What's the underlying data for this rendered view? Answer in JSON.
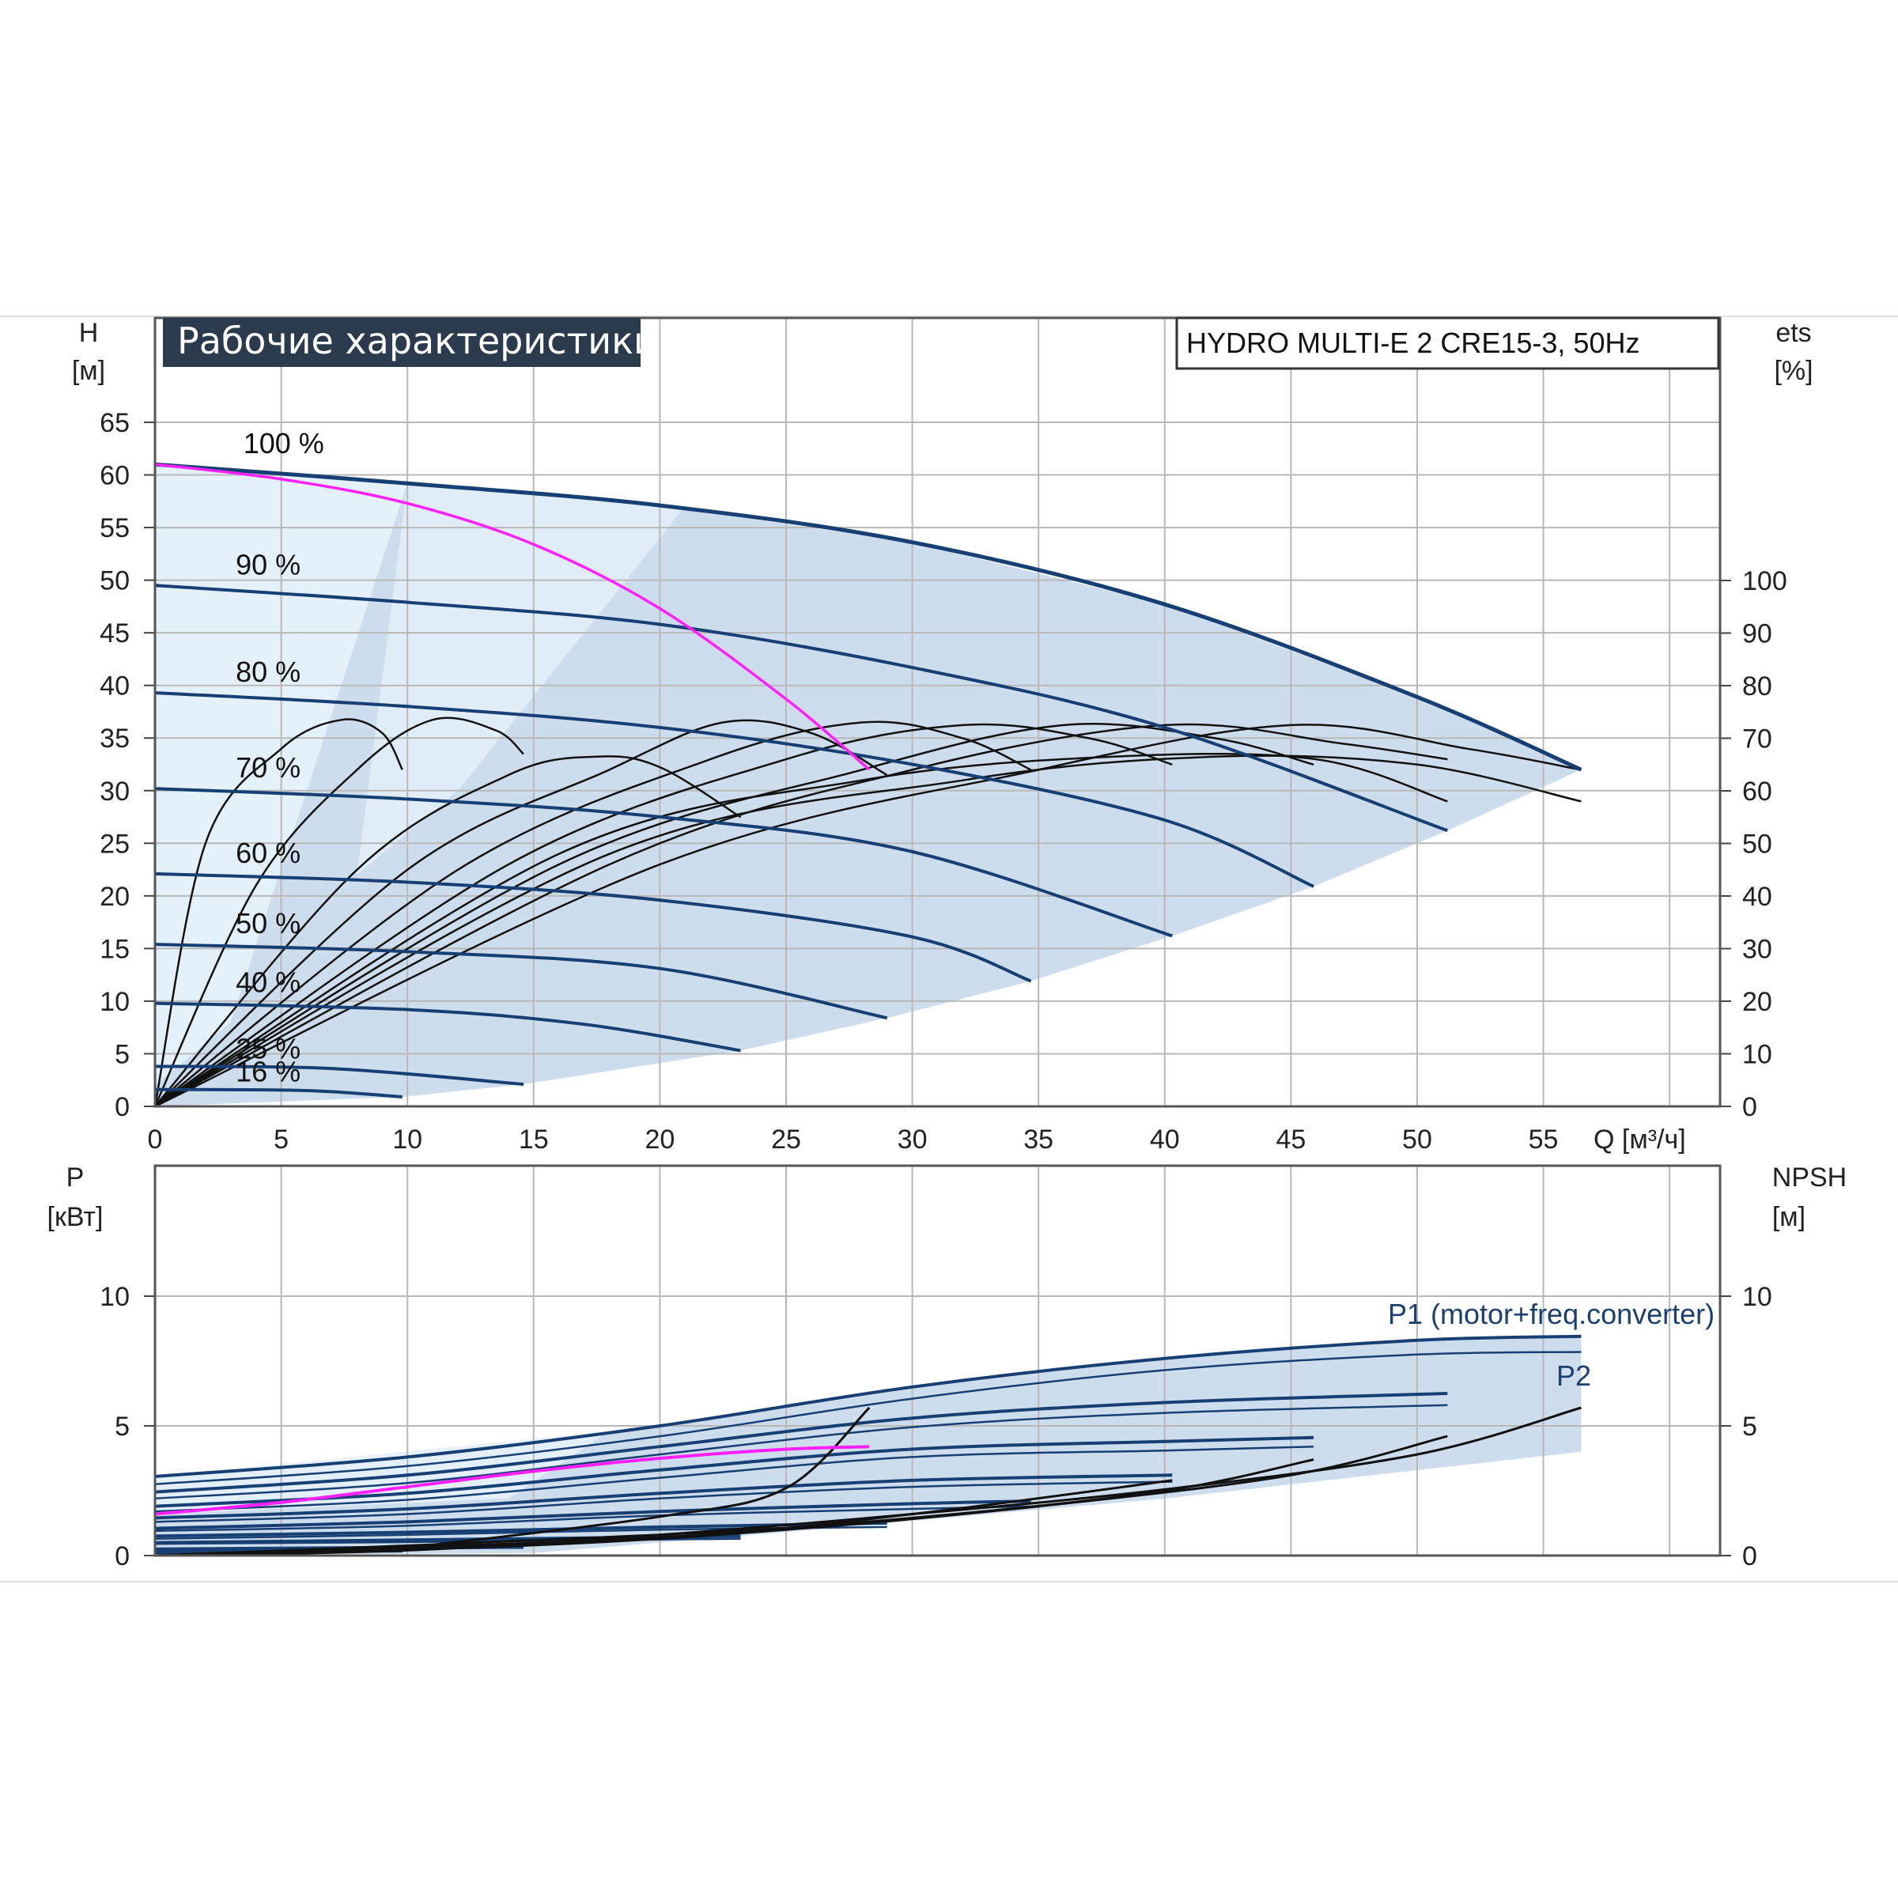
{
  "title": "Рабочие характеристики",
  "model": "HYDRO MULTI-E 2 CRE15-3, 50Hz",
  "colors": {
    "pump_curve": "#173f73",
    "efficiency": "#111111",
    "system_curve": "#ff1fff",
    "area_fill": "#c6d7ea",
    "area_light": "#e6f1fb",
    "title_bg": "#2b3b4d",
    "grid": "#b8b8b8"
  },
  "chart_data": [
    {
      "type": "line",
      "name": "head",
      "y_left_label": "H",
      "y_left_unit": "[м]",
      "y_right_label": "ets",
      "y_right_unit": "[%]",
      "x_label": "Q [м³/ч]",
      "xlim": [
        0,
        62
      ],
      "ylim": [
        0,
        65
      ],
      "x_ticks": [
        "0",
        "5",
        "10",
        "15",
        "20",
        "25",
        "30",
        "35",
        "40",
        "45",
        "50",
        "55"
      ],
      "y_left_ticks": [
        "0",
        "5",
        "10",
        "15",
        "20",
        "25",
        "30",
        "35",
        "40",
        "45",
        "50",
        "55",
        "60",
        "65"
      ],
      "y_right_ticks": [
        "0",
        "10",
        "20",
        "30",
        "40",
        "50",
        "60",
        "70",
        "80",
        "90",
        "100"
      ],
      "speed_labels": [
        "100 %",
        "90 %",
        "80 %",
        "70 %",
        "60 %",
        "50 %",
        "40 %",
        "25 %",
        "16 %"
      ],
      "speed_curves": [
        {
          "speed": "100 %",
          "points": [
            [
              0,
              61
            ],
            [
              10,
              59.2
            ],
            [
              20,
              57.1
            ],
            [
              30,
              53.6
            ],
            [
              40,
              47.7
            ],
            [
              50,
              38.9
            ],
            [
              56.5,
              32
            ]
          ]
        },
        {
          "speed": "90 %",
          "points": [
            [
              0,
              49.5
            ],
            [
              10,
              47.9
            ],
            [
              20,
              45.8
            ],
            [
              30,
              41.7
            ],
            [
              40,
              36.0
            ],
            [
              51.2,
              26.2
            ]
          ]
        },
        {
          "speed": "80 %",
          "points": [
            [
              0,
              39.3
            ],
            [
              10,
              38.0
            ],
            [
              20,
              36.0
            ],
            [
              30,
              32.5
            ],
            [
              40,
              27.2
            ],
            [
              45.9,
              20.9
            ]
          ]
        },
        {
          "speed": "70 %",
          "points": [
            [
              0,
              30.2
            ],
            [
              10,
              29.2
            ],
            [
              20,
              27.5
            ],
            [
              30,
              24.2
            ],
            [
              40.3,
              16.2
            ]
          ]
        },
        {
          "speed": "60 %",
          "points": [
            [
              0,
              22.1
            ],
            [
              10,
              21.3
            ],
            [
              20,
              19.6
            ],
            [
              30,
              16.1
            ],
            [
              34.7,
              11.9
            ]
          ]
        },
        {
          "speed": "50 %",
          "points": [
            [
              0,
              15.4
            ],
            [
              10,
              14.7
            ],
            [
              20,
              13.1
            ],
            [
              29.0,
              8.4
            ]
          ]
        },
        {
          "speed": "40 %",
          "points": [
            [
              0,
              9.8
            ],
            [
              10,
              9.2
            ],
            [
              17,
              7.8
            ],
            [
              23.2,
              5.3
            ]
          ]
        },
        {
          "speed": "25 %",
          "points": [
            [
              0,
              3.8
            ],
            [
              7,
              3.6
            ],
            [
              14.6,
              2.1
            ]
          ]
        },
        {
          "speed": "16 %",
          "points": [
            [
              0,
              1.6
            ],
            [
              6,
              1.5
            ],
            [
              9.8,
              0.9
            ]
          ]
        }
      ],
      "system_curve": {
        "points": [
          [
            0,
            61
          ],
          [
            5,
            59.6
          ],
          [
            10,
            57.3
          ],
          [
            15,
            53.4
          ],
          [
            20,
            47.3
          ],
          [
            25,
            38.7
          ],
          [
            28.3,
            32
          ]
        ]
      },
      "efficiency_curves": [
        {
          "points": [
            [
              0,
              0
            ],
            [
              2,
              50
            ],
            [
              5,
              68
            ],
            [
              7.4,
              73.5
            ],
            [
              9,
              71
            ],
            [
              9.8,
              64
            ]
          ]
        },
        {
          "points": [
            [
              0,
              0
            ],
            [
              4,
              42
            ],
            [
              8,
              64
            ],
            [
              11,
              73.5
            ],
            [
              13.5,
              71.5
            ],
            [
              14.6,
              67
            ]
          ]
        },
        {
          "points": [
            [
              0,
              0
            ],
            [
              8,
              45
            ],
            [
              14,
              63
            ],
            [
              17.5,
              66.5
            ],
            [
              20,
              64.5
            ],
            [
              23.2,
              55
            ]
          ]
        },
        {
          "points": [
            [
              0,
              0
            ],
            [
              10,
              45
            ],
            [
              18,
              64
            ],
            [
              22.5,
              73
            ],
            [
              26,
              71
            ],
            [
              29.0,
              63
            ]
          ]
        },
        {
          "points": [
            [
              0,
              0
            ],
            [
              12,
              45
            ],
            [
              22,
              66
            ],
            [
              28,
              73
            ],
            [
              32,
              70
            ],
            [
              34.7,
              64
            ]
          ]
        },
        {
          "points": [
            [
              0,
              0
            ],
            [
              14,
              46
            ],
            [
              25,
              66
            ],
            [
              32,
              72.5
            ],
            [
              37,
              70
            ],
            [
              40.3,
              65
            ]
          ]
        },
        {
          "points": [
            [
              0,
              0
            ],
            [
              16,
              46
            ],
            [
              28,
              64
            ],
            [
              36,
              72.5
            ],
            [
              42,
              70
            ],
            [
              45.9,
              65
            ]
          ]
        },
        {
          "points": [
            [
              0,
              0
            ],
            [
              18,
              46
            ],
            [
              30,
              64
            ],
            [
              40,
              72.5
            ],
            [
              47,
              69
            ],
            [
              51.2,
              66
            ]
          ]
        },
        {
          "points": [
            [
              0,
              0
            ],
            [
              20,
              46
            ],
            [
              35,
              64
            ],
            [
              45,
              72.5
            ],
            [
              52,
              68
            ],
            [
              56.5,
              64
            ]
          ]
        },
        {
          "points": [
            [
              0,
              0
            ],
            [
              16,
              48
            ],
            [
              28,
              62
            ],
            [
              38,
              66.5
            ],
            [
              46,
              66
            ],
            [
              51.2,
              58
            ]
          ]
        },
        {
          "points": [
            [
              0,
              0
            ],
            [
              18,
              48
            ],
            [
              32,
              62
            ],
            [
              42,
              66.5
            ],
            [
              50,
              65
            ],
            [
              56.5,
              58
            ]
          ]
        }
      ]
    },
    {
      "type": "line",
      "name": "power",
      "y_left_label": "P",
      "y_left_unit": "[кВт]",
      "y_right_label": "NPSH",
      "y_right_unit": "[м]",
      "xlim": [
        0,
        62
      ],
      "ylim": [
        0,
        15
      ],
      "y_left_ticks": [
        "0",
        "5",
        "10"
      ],
      "y_right_ticks": [
        "0",
        "5",
        "10"
      ],
      "series_labels": [
        "P1 (motor+freq.converter)",
        "P2"
      ],
      "p1_curves": [
        {
          "points": [
            [
              0,
              3.05
            ],
            [
              10,
              3.8
            ],
            [
              20,
              5.0
            ],
            [
              30,
              6.5
            ],
            [
              40,
              7.6
            ],
            [
              50,
              8.3
            ],
            [
              56.5,
              8.45
            ]
          ]
        },
        {
          "points": [
            [
              0,
              2.45
            ],
            [
              10,
              3.1
            ],
            [
              20,
              4.2
            ],
            [
              30,
              5.3
            ],
            [
              40,
              5.9
            ],
            [
              51.2,
              6.25
            ]
          ]
        },
        {
          "points": [
            [
              0,
              1.9
            ],
            [
              10,
              2.4
            ],
            [
              20,
              3.3
            ],
            [
              30,
              4.1
            ],
            [
              40,
              4.4
            ],
            [
              45.9,
              4.55
            ]
          ]
        },
        {
          "points": [
            [
              0,
              1.45
            ],
            [
              10,
              1.8
            ],
            [
              20,
              2.4
            ],
            [
              30,
              2.9
            ],
            [
              40.3,
              3.1
            ]
          ]
        },
        {
          "points": [
            [
              0,
              1.05
            ],
            [
              10,
              1.3
            ],
            [
              20,
              1.7
            ],
            [
              30,
              2.0
            ],
            [
              34.7,
              2.1
            ]
          ]
        },
        {
          "points": [
            [
              0,
              0.75
            ],
            [
              10,
              0.9
            ],
            [
              20,
              1.1
            ],
            [
              29,
              1.25
            ]
          ]
        },
        {
          "points": [
            [
              0,
              0.5
            ],
            [
              10,
              0.6
            ],
            [
              23.2,
              0.75
            ]
          ]
        },
        {
          "points": [
            [
              0,
              0.25
            ],
            [
              14.6,
              0.35
            ]
          ]
        },
        {
          "points": [
            [
              0,
              0.12
            ],
            [
              9.8,
              0.18
            ]
          ]
        }
      ],
      "p2_curves": [
        {
          "points": [
            [
              0,
              2.75
            ],
            [
              10,
              3.45
            ],
            [
              20,
              4.6
            ],
            [
              30,
              6.05
            ],
            [
              40,
              7.15
            ],
            [
              50,
              7.75
            ],
            [
              56.5,
              7.85
            ]
          ]
        },
        {
          "points": [
            [
              0,
              2.2
            ],
            [
              10,
              2.8
            ],
            [
              20,
              3.9
            ],
            [
              30,
              4.95
            ],
            [
              40,
              5.5
            ],
            [
              51.2,
              5.8
            ]
          ]
        },
        {
          "points": [
            [
              0,
              1.7
            ],
            [
              10,
              2.15
            ],
            [
              20,
              3.0
            ],
            [
              30,
              3.8
            ],
            [
              40,
              4.05
            ],
            [
              45.9,
              4.2
            ]
          ]
        },
        {
          "points": [
            [
              0,
              1.3
            ],
            [
              10,
              1.6
            ],
            [
              20,
              2.2
            ],
            [
              30,
              2.65
            ],
            [
              40.3,
              2.85
            ]
          ]
        },
        {
          "points": [
            [
              0,
              0.95
            ],
            [
              10,
              1.15
            ],
            [
              20,
              1.55
            ],
            [
              30,
              1.8
            ],
            [
              34.7,
              1.9
            ]
          ]
        },
        {
          "points": [
            [
              0,
              0.65
            ],
            [
              10,
              0.8
            ],
            [
              20,
              1.0
            ],
            [
              29,
              1.1
            ]
          ]
        },
        {
          "points": [
            [
              0,
              0.45
            ],
            [
              10,
              0.52
            ],
            [
              23.2,
              0.65
            ]
          ]
        },
        {
          "points": [
            [
              0,
              0.2
            ],
            [
              14.6,
              0.3
            ]
          ]
        }
      ],
      "system_power": {
        "points": [
          [
            0,
            1.6
          ],
          [
            5,
            2.05
          ],
          [
            10,
            2.65
          ],
          [
            15,
            3.25
          ],
          [
            20,
            3.75
          ],
          [
            25,
            4.1
          ],
          [
            28.3,
            4.2
          ]
        ]
      },
      "npsh_curves": [
        {
          "points": [
            [
              0,
              0
            ],
            [
              10,
              0.2
            ],
            [
              20,
              0.8
            ],
            [
              30,
              1.6
            ],
            [
              40,
              2.55
            ],
            [
              50,
              3.9
            ],
            [
              56.5,
              5.7
            ]
          ]
        },
        {
          "points": [
            [
              0,
              0
            ],
            [
              15,
              0.4
            ],
            [
              25,
              1.0
            ],
            [
              35,
              1.9
            ],
            [
              45,
              3.1
            ],
            [
              51.2,
              4.6
            ]
          ]
        },
        {
          "points": [
            [
              0,
              0
            ],
            [
              20,
              0.8
            ],
            [
              30,
              1.45
            ],
            [
              40,
              2.5
            ],
            [
              45.9,
              3.7
            ]
          ]
        },
        {
          "points": [
            [
              0,
              0
            ],
            [
              20,
              0.7
            ],
            [
              30,
              1.6
            ],
            [
              40.3,
              2.9
            ]
          ]
        },
        {
          "points": [
            [
              10,
              0.3
            ],
            [
              20,
              1.5
            ],
            [
              25,
              2.6
            ],
            [
              28.3,
              5.7
            ]
          ]
        }
      ]
    }
  ]
}
